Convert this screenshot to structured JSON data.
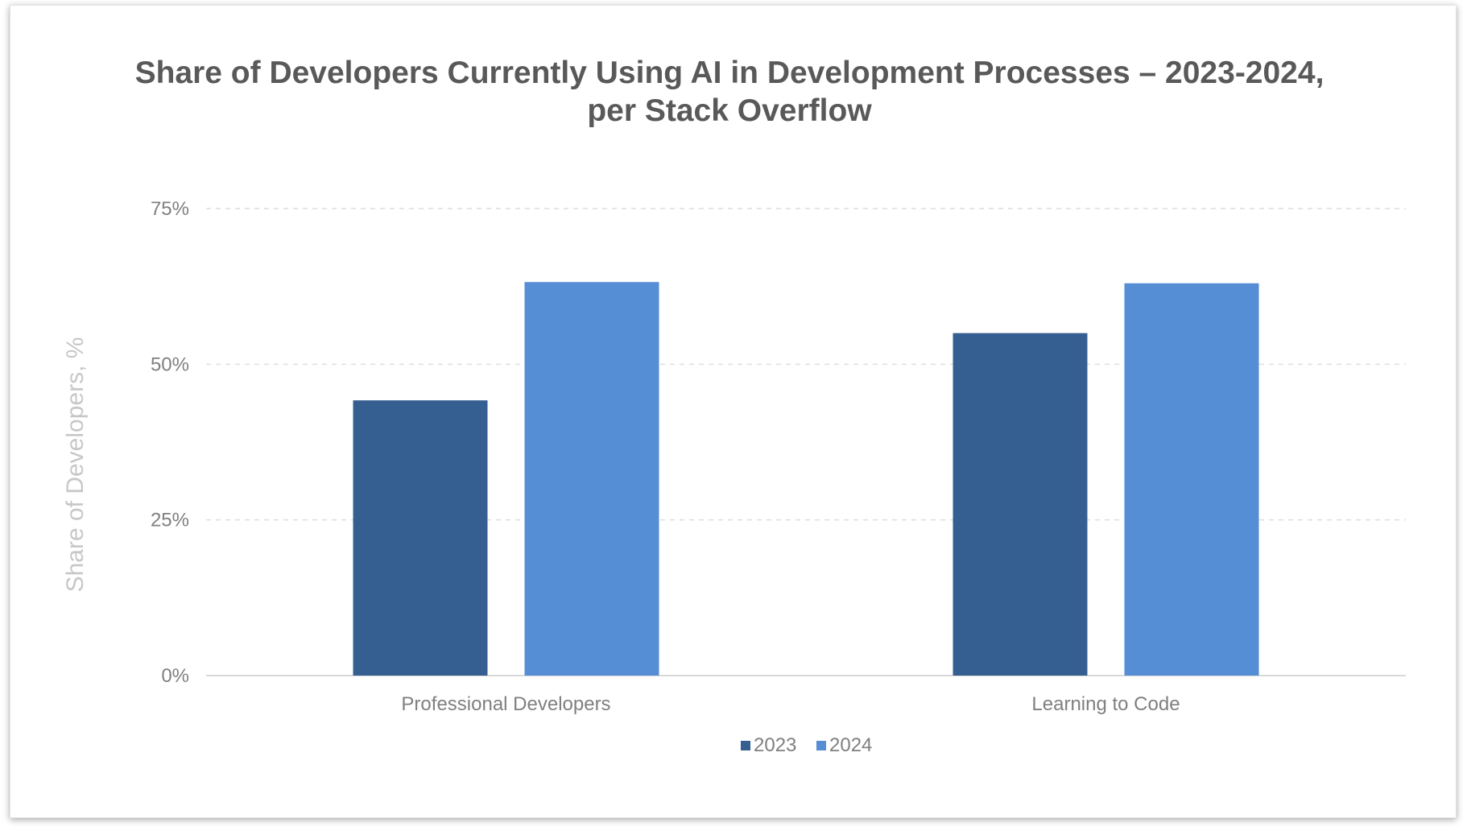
{
  "chart_data": {
    "type": "bar",
    "title_lines": [
      "Share of Developers Currently Using AI in Development Processes – 2023-2024,",
      "per Stack Overflow"
    ],
    "xlabel": "",
    "ylabel": "Share of Developers, %",
    "categories": [
      "Professional Developers",
      "Learning to Code"
    ],
    "series": [
      {
        "name": "2023",
        "values": [
          44.2,
          55
        ],
        "color": "#365f91"
      },
      {
        "name": "2024",
        "values": [
          63.2,
          63
        ],
        "color": "#558ed5"
      }
    ],
    "ylim": [
      0,
      75
    ],
    "yticks": [
      0,
      25,
      50,
      75
    ],
    "ytick_labels": [
      "0%",
      "25%",
      "50%",
      "75%"
    ],
    "grid": true,
    "legend_position": "bottom-center"
  }
}
